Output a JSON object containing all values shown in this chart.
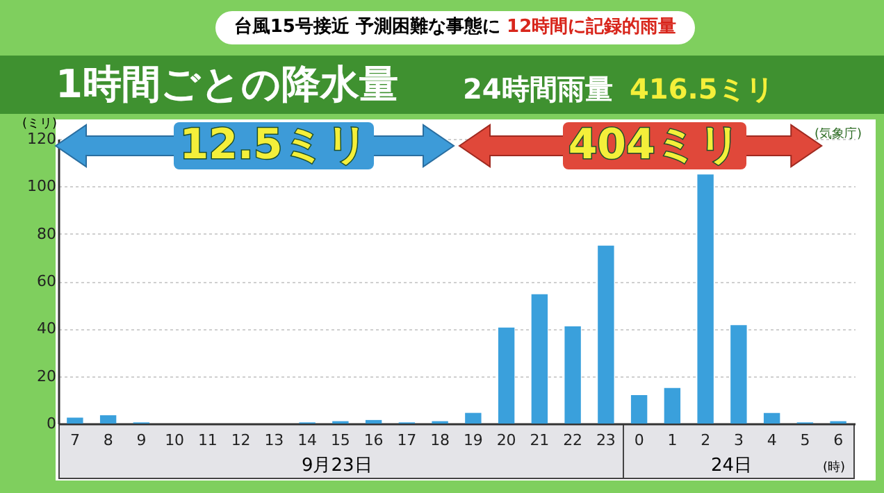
{
  "chart_data": {
    "type": "bar",
    "title": "1時間ごとの降水量",
    "subtitle": "24時間雨量",
    "ylabel": "(ミリ)",
    "annotations": [
      "台風15号接近 予測困難な事態に",
      "12時間に記録的雨量",
      "416.5ミリ",
      "12.5ミリ",
      "404ミリ",
      "9月23日",
      "24日",
      "(時)",
      "(気象庁)"
    ],
    "categories": [
      "7",
      "8",
      "9",
      "10",
      "11",
      "12",
      "13",
      "14",
      "15",
      "16",
      "17",
      "18",
      "19",
      "20",
      "21",
      "22",
      "23",
      "0",
      "1",
      "2",
      "3",
      "4",
      "5",
      "6"
    ],
    "values": [
      2.5,
      3.5,
      0.5,
      0,
      0,
      0,
      0,
      0.5,
      1,
      1.5,
      0.5,
      1,
      4.5,
      40.5,
      54.5,
      41,
      75,
      12,
      15,
      105,
      41.5,
      4.5,
      0.5,
      1
    ],
    "color": "#3aa0dc",
    "ylim": [
      0,
      120
    ],
    "yticks": [
      0,
      20,
      40,
      60,
      80,
      100,
      120
    ],
    "grid": "y"
  }
}
